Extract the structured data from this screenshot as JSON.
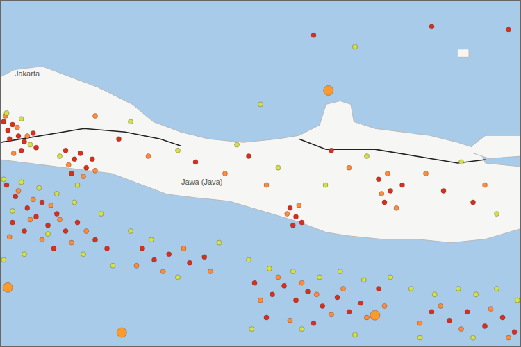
{
  "chart_data": {
    "type": "scatter",
    "xlim": [
      106.0,
      114.8
    ],
    "ylim": [
      -10.6,
      -4.6
    ],
    "tick_labels": false,
    "grid": false,
    "land": [
      {
        "x": [
          106.0,
          106.23,
          106.7,
          107.17,
          107.64,
          108.23,
          108.58,
          109.05,
          109.52,
          110.11,
          110.69,
          111.05,
          111.4,
          111.51,
          111.75,
          111.93,
          111.98,
          112.34,
          112.81,
          113.27,
          113.74,
          114.1,
          114.21,
          114.8,
          114.8,
          114.21,
          113.63,
          113.04,
          112.45,
          111.87,
          111.51,
          111.05,
          110.46,
          109.87,
          109.29,
          108.82,
          108.35,
          107.88,
          107.41,
          106.94,
          106.47,
          106.0
        ],
        "y": [
          -5.92,
          -5.8,
          -5.74,
          -5.92,
          -6.1,
          -6.4,
          -6.7,
          -6.88,
          -7.0,
          -7.06,
          -7.0,
          -6.94,
          -6.76,
          -6.4,
          -6.34,
          -6.4,
          -6.7,
          -6.82,
          -6.88,
          -6.94,
          -7.06,
          -7.18,
          -7.42,
          -7.48,
          -8.56,
          -8.74,
          -8.8,
          -8.74,
          -8.74,
          -8.68,
          -8.62,
          -8.44,
          -8.26,
          -8.08,
          -8.02,
          -7.96,
          -7.78,
          -7.6,
          -7.54,
          -7.48,
          -7.42,
          -7.36
        ]
      },
      {
        "x": [
          113.98,
          114.21,
          114.8,
          114.8,
          114.27,
          113.98
        ],
        "y": [
          -7.12,
          -6.94,
          -6.94,
          -7.3,
          -7.34,
          -7.24
        ]
      },
      {
        "x": [
          113.74,
          113.93,
          113.93,
          113.74
        ],
        "y": [
          -5.44,
          -5.44,
          -5.58,
          -5.58
        ]
      }
    ],
    "faults": [
      {
        "x": [
          106.0,
          106.7,
          107.41,
          108.11,
          108.7,
          109.05
        ],
        "y": [
          -7.06,
          -6.94,
          -6.82,
          -6.88,
          -7.0,
          -7.12
        ]
      },
      {
        "x": [
          111.05,
          111.51,
          112.34,
          113.04,
          113.74,
          114.21
        ],
        "y": [
          -7.0,
          -7.18,
          -7.18,
          -7.3,
          -7.42,
          -7.36
        ]
      }
    ],
    "series": [
      {
        "color": "#d7301f",
        "marker": "dot",
        "x": [
          106.05,
          106.12,
          106.2,
          106.3,
          106.4,
          106.15,
          106.55,
          106.6,
          106.35,
          107.1,
          107.25,
          107.35,
          107.45,
          107.2,
          107.55,
          106.1,
          106.25,
          106.45,
          106.6,
          106.8,
          106.7,
          106.95,
          107.1,
          107.3,
          106.4,
          106.2,
          107.6,
          107.8,
          106.9,
          108.4,
          108.6,
          108.85,
          109.2,
          109.45,
          110.9,
          111.0,
          111.1,
          110.95,
          110.3,
          110.6,
          110.8,
          111.0,
          111.2,
          111.45,
          111.7,
          111.9,
          112.1,
          110.5,
          111.3,
          112.4,
          113.3,
          113.6,
          113.9,
          114.2,
          114.5,
          114.7,
          112.4,
          112.6,
          112.8,
          112.5,
          108.0,
          109.3,
          110.2,
          111.6,
          113.5,
          114.0,
          111.3,
          113.3,
          114.6
        ],
        "y": [
          -6.7,
          -6.85,
          -6.75,
          -6.95,
          -7.05,
          -7.0,
          -6.9,
          -7.15,
          -7.2,
          -7.2,
          -7.35,
          -7.25,
          -7.5,
          -7.6,
          -7.35,
          -7.8,
          -8.0,
          -8.2,
          -8.35,
          -8.5,
          -8.1,
          -8.3,
          -8.6,
          -8.45,
          -8.6,
          -8.45,
          -8.75,
          -8.9,
          -8.9,
          -8.9,
          -9.1,
          -9.0,
          -9.15,
          -9.05,
          -8.2,
          -8.35,
          -8.45,
          -8.5,
          -9.5,
          -9.7,
          -9.55,
          -9.8,
          -9.65,
          -9.9,
          -9.75,
          -10.0,
          -9.85,
          -10.1,
          -10.2,
          -9.6,
          -10.0,
          -10.15,
          -10.0,
          -10.25,
          -10.1,
          -10.35,
          -7.7,
          -7.9,
          -7.8,
          -8.1,
          -7.0,
          -7.4,
          -7.3,
          -7.2,
          -7.9,
          -8.1,
          -5.2,
          -5.05,
          -5.1
        ]
      },
      {
        "color": "#fd8d3c",
        "marker": "dot",
        "x": [
          106.08,
          106.28,
          106.45,
          106.22,
          107.15,
          107.4,
          107.6,
          106.3,
          106.55,
          106.85,
          107.0,
          106.5,
          107.2,
          107.45,
          106.15,
          106.7,
          108.3,
          108.75,
          109.1,
          109.55,
          110.85,
          111.05,
          110.4,
          110.7,
          111.1,
          111.35,
          111.6,
          111.8,
          112.2,
          112.5,
          110.9,
          113.1,
          113.45,
          113.8,
          114.3,
          114.6,
          112.45,
          112.7,
          112.55,
          107.6,
          108.5,
          109.8,
          110.5,
          111.9,
          113.2,
          114.2
        ],
        "y": [
          -6.6,
          -6.8,
          -6.95,
          -7.25,
          -7.45,
          -7.65,
          -7.55,
          -7.9,
          -8.05,
          -8.15,
          -8.4,
          -8.4,
          -8.8,
          -8.6,
          -8.7,
          -8.75,
          -9.2,
          -9.3,
          -8.9,
          -9.3,
          -8.3,
          -8.15,
          -9.8,
          -9.4,
          -9.5,
          -9.7,
          -10.05,
          -9.6,
          -10.1,
          -9.9,
          -10.15,
          -10.2,
          -9.9,
          -10.3,
          -9.95,
          -10.45,
          -7.95,
          -8.2,
          -7.6,
          -6.6,
          -7.3,
          -7.6,
          -7.8,
          -7.5,
          -7.6,
          -7.8
        ]
      },
      {
        "color": "#cde34a",
        "marker": "dot",
        "x": [
          106.1,
          106.35,
          106.5,
          107.0,
          107.3,
          106.05,
          106.35,
          106.65,
          106.95,
          107.25,
          107.7,
          106.2,
          106.8,
          107.4,
          107.9,
          106.4,
          106.05,
          108.2,
          108.55,
          109.0,
          109.7,
          110.2,
          110.55,
          110.95,
          111.4,
          111.75,
          112.15,
          112.6,
          110.25,
          111.1,
          112.0,
          112.95,
          113.35,
          113.75,
          114.05,
          114.4,
          114.75,
          113.1,
          114.0,
          108.2,
          109.0,
          110.0,
          110.7,
          111.5,
          112.2,
          113.8,
          114.4,
          112.0,
          110.4
        ],
        "y": [
          -6.55,
          -6.65,
          -7.1,
          -7.3,
          -7.8,
          -7.7,
          -7.75,
          -7.85,
          -7.95,
          -8.1,
          -8.3,
          -8.25,
          -8.65,
          -9.0,
          -9.2,
          -9.0,
          -9.1,
          -8.6,
          -8.75,
          -9.4,
          -8.8,
          -9.1,
          -9.25,
          -9.3,
          -9.4,
          -9.3,
          -9.45,
          -9.4,
          -10.3,
          -10.3,
          -10.4,
          -9.6,
          -9.7,
          -9.6,
          -9.7,
          -9.6,
          -9.8,
          -10.45,
          -10.45,
          -6.7,
          -7.2,
          -7.1,
          -7.5,
          -7.8,
          -7.3,
          -7.4,
          -8.3,
          -5.4,
          -6.4
        ]
      },
      {
        "color": "#fd9a2c",
        "marker": "big",
        "x": [
          111.55,
          106.12,
          108.05,
          112.34
        ],
        "y": [
          -6.16,
          -9.58,
          -10.36,
          -10.06
        ]
      }
    ],
    "annotations": [
      {
        "text": "Jakarta",
        "x": 106.45,
        "y": -5.86
      },
      {
        "text": "Jawa (Java)",
        "x": 109.4,
        "y": -7.74
      }
    ]
  }
}
